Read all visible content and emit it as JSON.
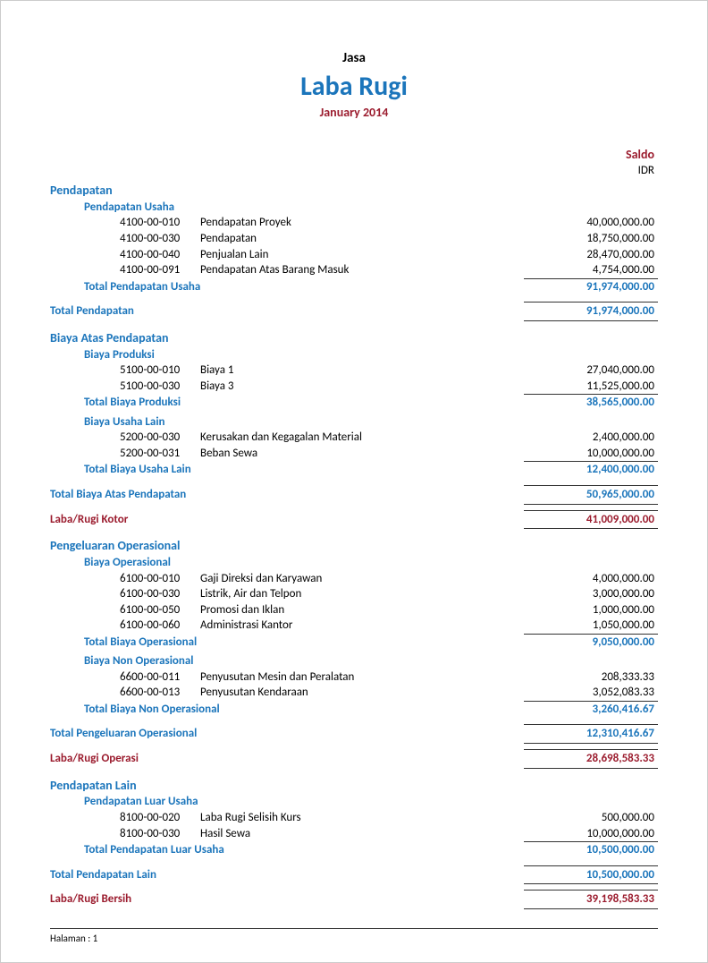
{
  "colors": {
    "primary": "#1b75bb",
    "accent": "#9b1c2e",
    "text": "#000000",
    "background": "#ffffff",
    "border": "#333333"
  },
  "header": {
    "company": "Jasa",
    "title": "Laba Rugi",
    "period": "January 2014"
  },
  "column_header": "Saldo",
  "currency": "IDR",
  "sections": [
    {
      "title": "Pendapatan",
      "groups": [
        {
          "title": "Pendapatan Usaha",
          "items": [
            {
              "code": "4100-00-010",
              "desc": "Pendapatan Proyek",
              "amount": "40,000,000.00"
            },
            {
              "code": "4100-00-030",
              "desc": "Pendapatan",
              "amount": "18,750,000.00"
            },
            {
              "code": "4100-00-040",
              "desc": "Penjualan Lain",
              "amount": "28,470,000.00"
            },
            {
              "code": "4100-00-091",
              "desc": "Pendapatan Atas Barang Masuk",
              "amount": "4,754,000.00"
            }
          ],
          "total_label": "Total Pendapatan Usaha",
          "total_amount": "91,974,000.00"
        }
      ],
      "section_total_label": "Total Pendapatan",
      "section_total_amount": "91,974,000.00"
    },
    {
      "title": "Biaya Atas Pendapatan",
      "groups": [
        {
          "title": "Biaya Produksi",
          "items": [
            {
              "code": "5100-00-010",
              "desc": "Biaya 1",
              "amount": "27,040,000.00"
            },
            {
              "code": "5100-00-030",
              "desc": "Biaya 3",
              "amount": "11,525,000.00"
            }
          ],
          "total_label": "Total Biaya Produksi",
          "total_amount": "38,565,000.00"
        },
        {
          "title": "Biaya Usaha Lain",
          "items": [
            {
              "code": "5200-00-030",
              "desc": "Kerusakan dan Kegagalan Material",
              "amount": "2,400,000.00"
            },
            {
              "code": "5200-00-031",
              "desc": "Beban Sewa",
              "amount": "10,000,000.00"
            }
          ],
          "total_label": "Total Biaya Usaha Lain",
          "total_amount": "12,400,000.00"
        }
      ],
      "section_total_label": "Total Biaya Atas Pendapatan",
      "section_total_amount": "50,965,000.00",
      "result_label": "Laba/Rugi Kotor",
      "result_amount": "41,009,000.00"
    },
    {
      "title": "Pengeluaran Operasional",
      "groups": [
        {
          "title": "Biaya Operasional",
          "items": [
            {
              "code": "6100-00-010",
              "desc": "Gaji Direksi dan Karyawan",
              "amount": "4,000,000.00"
            },
            {
              "code": "6100-00-030",
              "desc": "Listrik, Air dan Telpon",
              "amount": "3,000,000.00"
            },
            {
              "code": "6100-00-050",
              "desc": "Promosi dan Iklan",
              "amount": "1,000,000.00"
            },
            {
              "code": "6100-00-060",
              "desc": "Administrasi Kantor",
              "amount": "1,050,000.00"
            }
          ],
          "total_label": "Total Biaya Operasional",
          "total_amount": "9,050,000.00"
        },
        {
          "title": "Biaya Non Operasional",
          "items": [
            {
              "code": "6600-00-011",
              "desc": "Penyusutan Mesin dan Peralatan",
              "amount": "208,333.33"
            },
            {
              "code": "6600-00-013",
              "desc": "Penyusutan Kendaraan",
              "amount": "3,052,083.33"
            }
          ],
          "total_label": "Total Biaya Non Operasional",
          "total_amount": "3,260,416.67"
        }
      ],
      "section_total_label": "Total Pengeluaran Operasional",
      "section_total_amount": "12,310,416.67",
      "result_label": "Laba/Rugi Operasi",
      "result_amount": "28,698,583.33"
    },
    {
      "title": "Pendapatan Lain",
      "groups": [
        {
          "title": "Pendapatan Luar Usaha",
          "items": [
            {
              "code": "8100-00-020",
              "desc": "Laba Rugi Selisih Kurs",
              "amount": "500,000.00"
            },
            {
              "code": "8100-00-030",
              "desc": "Hasil Sewa",
              "amount": "10,000,000.00"
            }
          ],
          "total_label": "Total Pendapatan Luar Usaha",
          "total_amount": "10,500,000.00"
        }
      ],
      "section_total_label": "Total Pendapatan Lain",
      "section_total_amount": "10,500,000.00",
      "result_label": "Laba/Rugi Bersih",
      "result_amount": "39,198,583.33"
    }
  ],
  "footer": {
    "page_label": "Halaman : 1"
  }
}
